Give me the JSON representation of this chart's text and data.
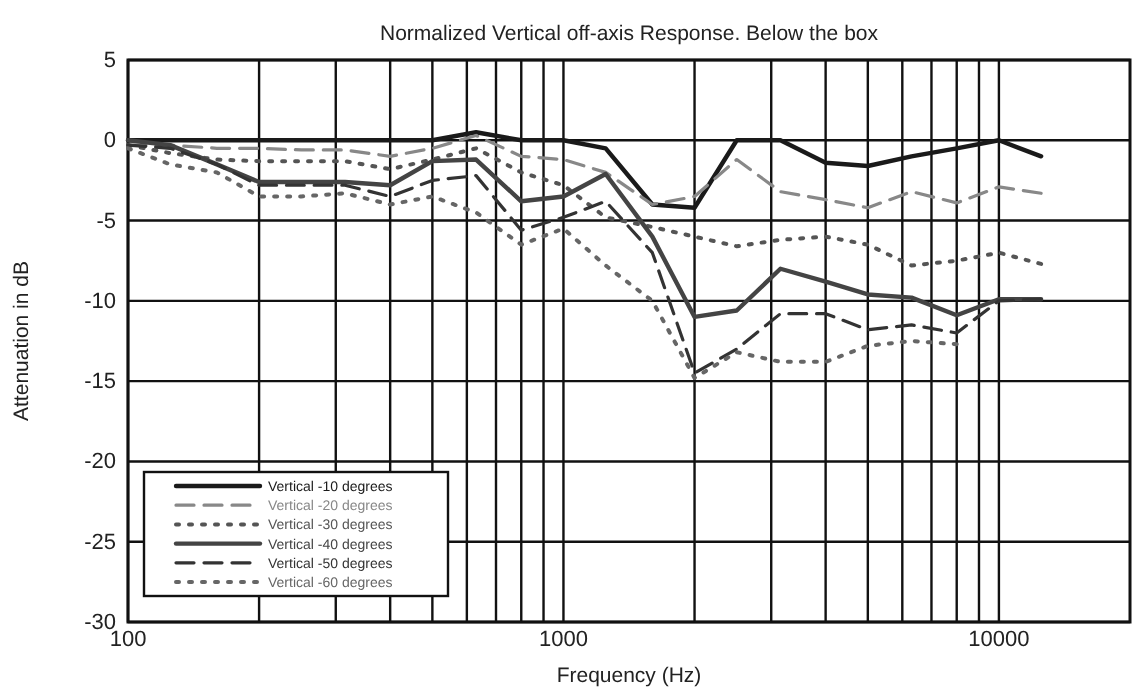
{
  "chart_data": {
    "type": "line",
    "title": "Normalized Vertical off-axis Response. Below the box",
    "xlabel": "Frequency (Hz)",
    "ylabel": "Attenuation in dB",
    "log": "x",
    "grid": true,
    "legend": "bottom left",
    "x": [
      100,
      125,
      160,
      200,
      250,
      315,
      400,
      500,
      630,
      800,
      1000,
      1250,
      1600,
      2000,
      2500,
      3150,
      4000,
      5000,
      6300,
      8000,
      10000,
      12500
    ],
    "xlim": [
      100,
      20000
    ],
    "xticks": [
      100,
      {
        "value": 200,
        "label": null
      },
      {
        "value": 300,
        "label": null
      },
      {
        "value": 400,
        "label": null
      },
      {
        "value": 500,
        "label": null
      },
      {
        "value": 600,
        "label": null
      },
      {
        "value": 700,
        "label": null
      },
      {
        "value": 800,
        "label": null
      },
      {
        "value": 900,
        "label": null
      },
      1000,
      {
        "value": 2000,
        "label": null
      },
      {
        "value": 3000,
        "label": null
      },
      {
        "value": 4000,
        "label": null
      },
      {
        "value": 5000,
        "label": null
      },
      {
        "value": 6000,
        "label": null
      },
      {
        "value": 7000,
        "label": null
      },
      {
        "value": 8000,
        "label": null
      },
      {
        "value": 9000,
        "label": null
      },
      10000
    ],
    "ylim": [
      -30,
      5
    ],
    "yticks": [
      5,
      0,
      -5,
      -10,
      -15,
      -20,
      -25,
      -30
    ],
    "series": [
      {
        "name": "Vertical -10 degrees",
        "color": "#1a1a1a",
        "line_style": "solid",
        "values": [
          0,
          0,
          0,
          0,
          0,
          0,
          0,
          0,
          0.5,
          0,
          0,
          -0.5,
          -4,
          -4.2,
          0,
          0,
          -1.4,
          -1.6,
          -1,
          -0.5,
          0,
          -1
        ]
      },
      {
        "name": "Vertical -20 degrees",
        "color": "#888888",
        "line_style": "dashed",
        "values": [
          -0.3,
          -0.3,
          -0.5,
          -0.5,
          -0.6,
          -0.6,
          -1,
          -0.5,
          0.3,
          -1,
          -1.2,
          -2,
          -4,
          -3.5,
          -1.2,
          -3.2,
          -3.7,
          -4.2,
          -3.2,
          -3.9,
          -2.9,
          -3.3
        ]
      },
      {
        "name": "Vertical -30 degrees",
        "color": "#555555",
        "line_style": "dotted",
        "values": [
          -0.3,
          -0.8,
          -1.2,
          -1.3,
          -1.3,
          -1.3,
          -1.8,
          -1.2,
          -0.5,
          -2,
          -2.8,
          -4.8,
          -5.4,
          -6,
          -6.6,
          -6.2,
          -6,
          -6.5,
          -7.8,
          -7.5,
          -7,
          -7.7
        ]
      },
      {
        "name": "Vertical -40 degrees",
        "color": "#444444",
        "line_style": "solid",
        "values": [
          0,
          -0.3,
          -1.5,
          -2.6,
          -2.6,
          -2.6,
          -2.8,
          -1.3,
          -1.2,
          -3.8,
          -3.5,
          -2.1,
          -6,
          -11,
          -10.6,
          -8,
          -8.8,
          -9.6,
          -9.8,
          -10.9,
          -9.9,
          -9.9
        ]
      },
      {
        "name": "Vertical -50 degrees",
        "color": "#333333",
        "line_style": "dashed",
        "values": [
          -0.3,
          -0.5,
          -1.5,
          -2.8,
          -2.8,
          -2.8,
          -3.5,
          -2.5,
          -2.2,
          -5.6,
          -4.8,
          -3.8,
          -7,
          -14.5,
          -13,
          -10.8,
          -10.8,
          -11.8,
          -11.5,
          -12,
          -10,
          -9.9
        ]
      },
      {
        "name": "Vertical -60 degrees",
        "color": "#666666",
        "line_style": "dotted",
        "values": [
          -0.5,
          -1.5,
          -2,
          -3.5,
          -3.5,
          -3.3,
          -4,
          -3.5,
          -4.5,
          -6.5,
          -5.5,
          -7.8,
          -10,
          -14.8,
          -13.2,
          -13.8,
          -13.8,
          -12.8,
          -12.5,
          -12.7,
          null,
          null
        ]
      }
    ]
  }
}
